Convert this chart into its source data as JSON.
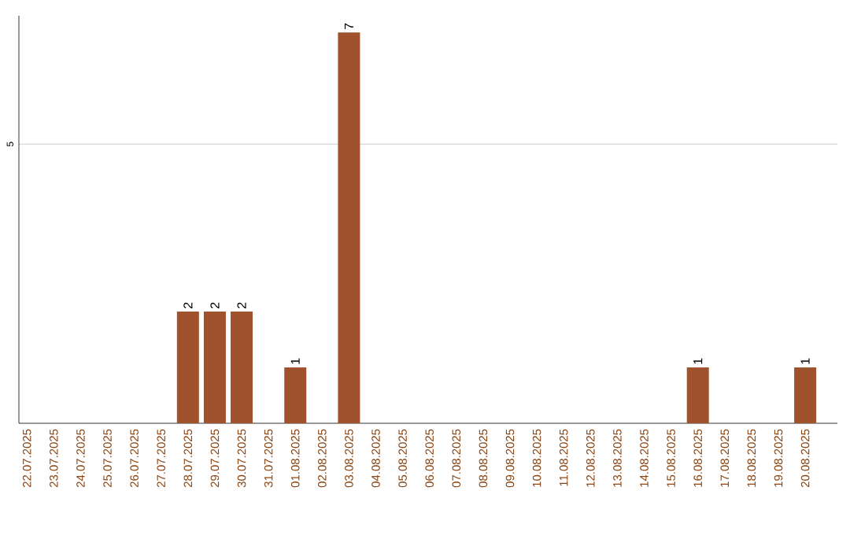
{
  "chart_data": {
    "type": "bar",
    "categories": [
      "22.07.2025",
      "23.07.2025",
      "24.07.2025",
      "25.07.2025",
      "26.07.2025",
      "27.07.2025",
      "28.07.2025",
      "29.07.2025",
      "30.07.2025",
      "31.07.2025",
      "01.08.2025",
      "02.08.2025",
      "03.08.2025",
      "04.08.2025",
      "05.08.2025",
      "06.08.2025",
      "07.08.2025",
      "08.08.2025",
      "09.08.2025",
      "10.08.2025",
      "11.08.2025",
      "12.08.2025",
      "13.08.2025",
      "14.08.2025",
      "15.08.2025",
      "16.08.2025",
      "17.08.2025",
      "18.08.2025",
      "19.08.2025",
      "20.08.2025"
    ],
    "values": [
      0,
      0,
      0,
      0,
      0,
      0,
      2,
      2,
      2,
      0,
      1,
      0,
      7,
      0,
      0,
      0,
      0,
      0,
      0,
      0,
      0,
      0,
      0,
      0,
      0,
      1,
      0,
      0,
      0,
      1
    ],
    "value_labels": [
      null,
      null,
      null,
      null,
      null,
      null,
      "2",
      "2",
      "2",
      null,
      "1",
      null,
      "7",
      null,
      null,
      null,
      null,
      null,
      null,
      null,
      null,
      null,
      null,
      null,
      null,
      "1",
      null,
      null,
      null,
      "1"
    ],
    "color": "#a0522d",
    "ylim": [
      0,
      7.3
    ],
    "yticks": [
      5
    ],
    "grid": "y"
  }
}
